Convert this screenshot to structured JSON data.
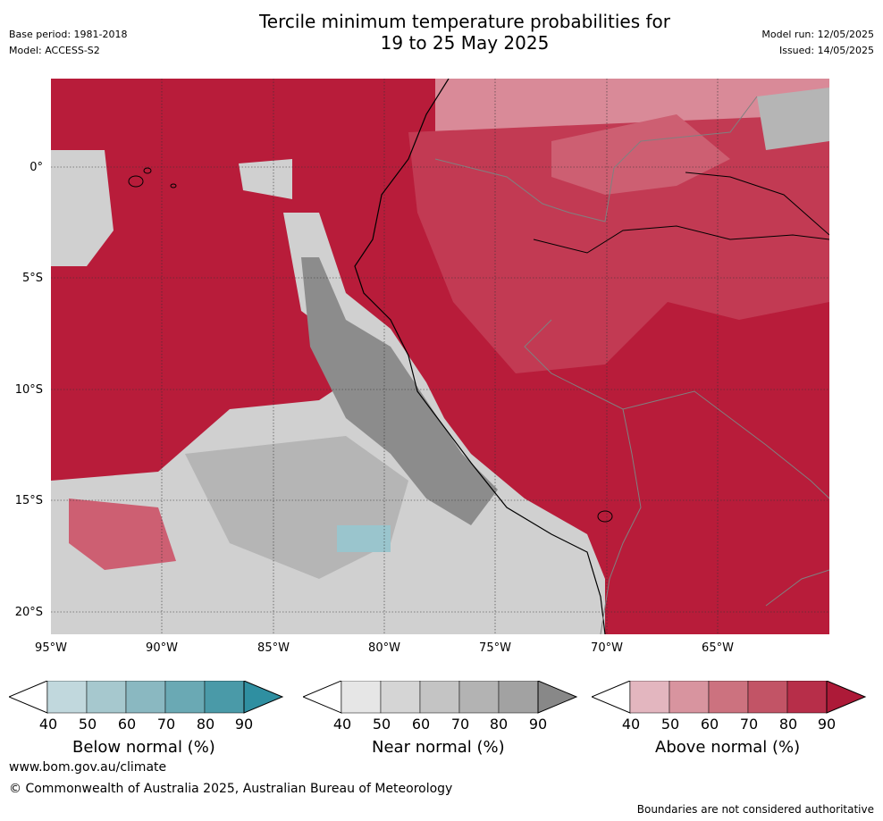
{
  "header": {
    "title_line1": "Tercile minimum temperature probabilities for",
    "title_line2": "19 to 25 May 2025",
    "base_period": "Base period: 1981-2018",
    "model": "Model: ACCESS-S2",
    "model_run": "Model run: 12/05/2025",
    "issued": "Issued: 14/05/2025"
  },
  "map": {
    "lat_labels": [
      "0°",
      "5°S",
      "10°S",
      "15°S",
      "20°S"
    ],
    "lon_labels": [
      "95°W",
      "90°W",
      "85°W",
      "80°W",
      "75°W",
      "70°W",
      "65°W"
    ],
    "colors": {
      "above_90": "#b81c3a",
      "above_80": "#c23a53",
      "above_70": "#cd5f72",
      "above_60": "#d98a98",
      "near_90": "#8c8c8c",
      "near_70": "#b5b5b5",
      "near_50": "#d0d0d0",
      "below_60": "#9ac5cd"
    }
  },
  "legends": [
    {
      "name": "Below normal (%)",
      "ticks": [
        "40",
        "50",
        "60",
        "70",
        "80",
        "90"
      ],
      "colors": [
        "#c1d8dd",
        "#a6c8ce",
        "#8ab8c1",
        "#6aa9b4",
        "#4a9aa8",
        "#2f8fa1"
      ]
    },
    {
      "name": "Near normal (%)",
      "ticks": [
        "40",
        "50",
        "60",
        "70",
        "80",
        "90"
      ],
      "colors": [
        "#e6e6e6",
        "#d5d5d5",
        "#c4c4c4",
        "#b3b3b3",
        "#a2a2a2",
        "#888888"
      ]
    },
    {
      "name": "Above normal (%)",
      "ticks": [
        "40",
        "50",
        "60",
        "70",
        "80",
        "90"
      ],
      "colors": [
        "#e3b6bf",
        "#d8949f",
        "#cc727f",
        "#c25466",
        "#b72e49",
        "#ad1a38"
      ]
    }
  ],
  "footer": {
    "url": "www.bom.gov.au/climate",
    "copyright": "© Commonwealth of Australia 2025, Australian Bureau of Meteorology",
    "disclaimer": "Boundaries are not considered authoritative"
  }
}
